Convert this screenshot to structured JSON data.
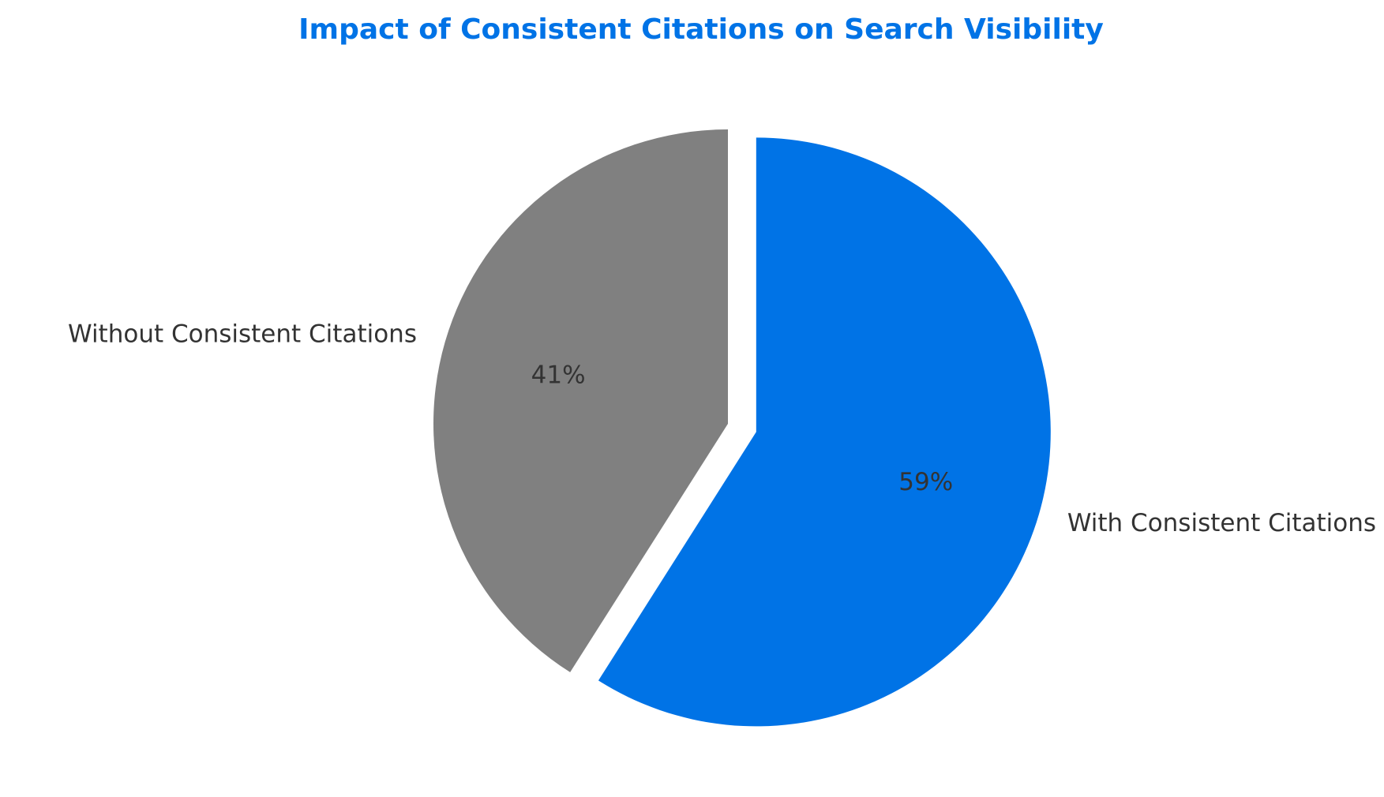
{
  "chart_data": {
    "type": "pie",
    "title": "Impact of Consistent Citations on Search Visibility",
    "slices": [
      {
        "label": "Without Consistent Citations",
        "value": 41,
        "pct_label": "41%",
        "color": "#808080",
        "exploded": false
      },
      {
        "label": "With Consistent Citations",
        "value": 59,
        "pct_label": "59%",
        "color": "#0073E6",
        "exploded": true
      }
    ],
    "start_angle_deg": 90,
    "direction": "counterclockwise",
    "legend": "none"
  },
  "colors": {
    "title": "#0073E6",
    "label_text": "#333333",
    "background": "#ffffff"
  }
}
